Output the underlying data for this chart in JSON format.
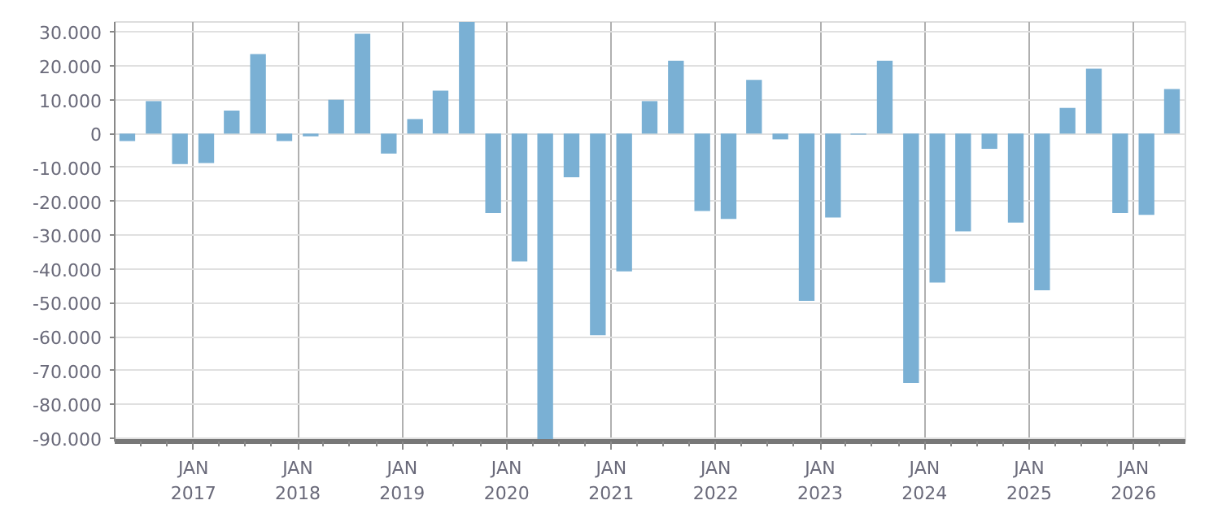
{
  "chart_data": {
    "type": "bar",
    "color": "#7ab0d4",
    "grid": true,
    "x": [
      "2016-05-15",
      "2016-08-15",
      "2016-11-15",
      "2017-02-15",
      "2017-05-15",
      "2017-08-15",
      "2017-11-15",
      "2018-02-15",
      "2018-05-15",
      "2018-08-15",
      "2018-11-15",
      "2019-02-15",
      "2019-05-15",
      "2019-08-15",
      "2019-11-15",
      "2020-02-15",
      "2020-05-15",
      "2020-08-15",
      "2020-11-15",
      "2021-02-15",
      "2021-05-15",
      "2021-08-15",
      "2021-11-15",
      "2022-02-15",
      "2022-05-15",
      "2022-08-15",
      "2022-11-15",
      "2023-02-15",
      "2023-05-15",
      "2023-08-15",
      "2023-11-15",
      "2024-02-15",
      "2024-05-15",
      "2024-08-15",
      "2024-11-15",
      "2025-02-15",
      "2025-05-15",
      "2025-08-15",
      "2025-11-15",
      "2026-02-15",
      "2026-05-15"
    ],
    "values": [
      -2200,
      9600,
      -9000,
      -8700,
      6800,
      23500,
      -2200,
      -800,
      10000,
      29500,
      -5900,
      4300,
      12700,
      33000,
      -23500,
      -37800,
      -91000,
      -12900,
      -59600,
      -40700,
      9600,
      21500,
      -22900,
      -25200,
      15900,
      -1700,
      -49400,
      -24800,
      -300,
      21500,
      -73700,
      -44000,
      -28900,
      -4500,
      -26300,
      -46300,
      7600,
      19200,
      -23500,
      -24000,
      13200
    ],
    "xlim": [
      "2016-04-01",
      "2026-07-01"
    ],
    "xticks": [
      {
        "value": "2016-07-01",
        "label": null
      },
      {
        "value": "2016-10-01",
        "label": null
      },
      {
        "value": "2017-01-01",
        "label": "JAN\n2017"
      },
      {
        "value": "2017-04-01",
        "label": null
      },
      {
        "value": "2017-07-01",
        "label": null
      },
      {
        "value": "2017-10-01",
        "label": null
      },
      {
        "value": "2018-01-01",
        "label": "JAN\n2018"
      },
      {
        "value": "2018-04-01",
        "label": null
      },
      {
        "value": "2018-07-01",
        "label": null
      },
      {
        "value": "2018-10-01",
        "label": null
      },
      {
        "value": "2019-01-01",
        "label": "JAN\n2019"
      },
      {
        "value": "2019-04-01",
        "label": null
      },
      {
        "value": "2019-07-01",
        "label": null
      },
      {
        "value": "2019-10-01",
        "label": null
      },
      {
        "value": "2020-01-01",
        "label": "JAN\n2020"
      },
      {
        "value": "2020-04-01",
        "label": null
      },
      {
        "value": "2020-07-01",
        "label": null
      },
      {
        "value": "2020-10-01",
        "label": null
      },
      {
        "value": "2021-01-01",
        "label": "JAN\n2021"
      },
      {
        "value": "2021-04-01",
        "label": null
      },
      {
        "value": "2021-07-01",
        "label": null
      },
      {
        "value": "2021-10-01",
        "label": null
      },
      {
        "value": "2022-01-01",
        "label": "JAN\n2022"
      },
      {
        "value": "2022-04-01",
        "label": null
      },
      {
        "value": "2022-07-01",
        "label": null
      },
      {
        "value": "2022-10-01",
        "label": null
      },
      {
        "value": "2023-01-01",
        "label": "JAN\n2023"
      },
      {
        "value": "2023-04-01",
        "label": null
      },
      {
        "value": "2023-07-01",
        "label": null
      },
      {
        "value": "2023-10-01",
        "label": null
      },
      {
        "value": "2024-01-01",
        "label": "JAN\n2024"
      },
      {
        "value": "2024-04-01",
        "label": null
      },
      {
        "value": "2024-07-01",
        "label": null
      },
      {
        "value": "2024-10-01",
        "label": null
      },
      {
        "value": "2025-01-01",
        "label": "JAN\n2025"
      },
      {
        "value": "2025-04-01",
        "label": null
      },
      {
        "value": "2025-07-01",
        "label": null
      },
      {
        "value": "2025-10-01",
        "label": null
      },
      {
        "value": "2026-01-01",
        "label": "JAN\n2026"
      },
      {
        "value": "2026-04-01",
        "label": null
      }
    ],
    "ylim": [
      -91000,
      33000
    ],
    "yticks": [
      {
        "value": 30000,
        "label": "30.000"
      },
      {
        "value": 20000,
        "label": "20.000"
      },
      {
        "value": 10000,
        "label": "10.000"
      },
      0,
      {
        "value": -10000,
        "label": "-10.000"
      },
      {
        "value": -20000,
        "label": "-20.000"
      },
      {
        "value": -30000,
        "label": "-30.000"
      },
      {
        "value": -40000,
        "label": "-40.000"
      },
      {
        "value": -50000,
        "label": "-50.000"
      },
      {
        "value": -60000,
        "label": "-60.000"
      },
      {
        "value": -70000,
        "label": "-70.000"
      },
      {
        "value": -80000,
        "label": "-80.000"
      },
      {
        "value": -90000,
        "label": "-90.000"
      }
    ]
  }
}
